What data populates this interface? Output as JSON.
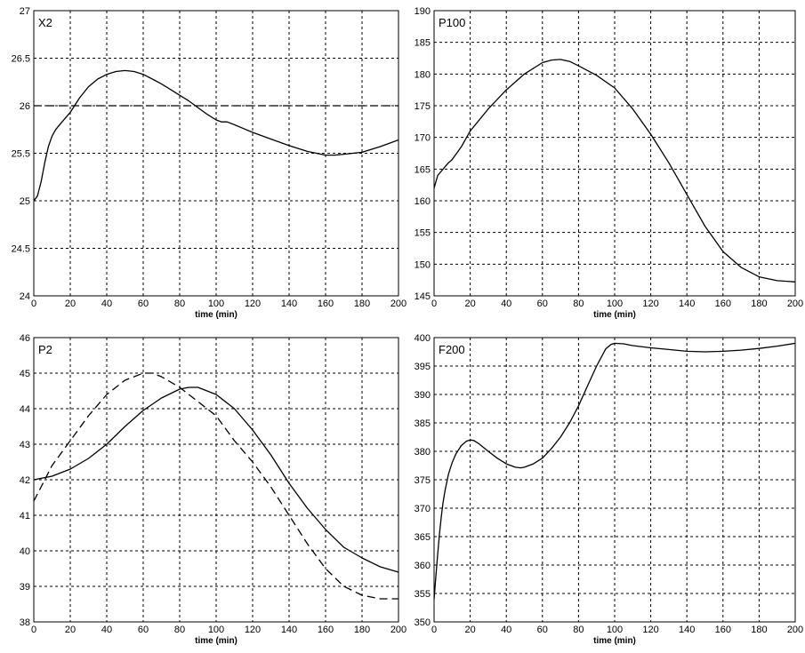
{
  "chart_data": [
    {
      "type": "line",
      "title": "X2",
      "xlabel": "time (min)",
      "ylabel": "",
      "xlim": [
        0,
        200
      ],
      "ylim": [
        24,
        27
      ],
      "grid": true,
      "xticks": [
        0,
        20,
        40,
        60,
        80,
        100,
        120,
        140,
        160,
        180,
        200
      ],
      "yticks": [
        24,
        24.5,
        25,
        25.5,
        26,
        26.5,
        27
      ],
      "series": [
        {
          "style": "solid",
          "x": [
            0,
            2,
            4,
            6,
            8,
            10,
            12,
            15,
            20,
            25,
            30,
            35,
            40,
            45,
            50,
            55,
            60,
            65,
            70,
            75,
            80,
            85,
            90,
            95,
            100,
            103,
            106,
            110,
            115,
            120,
            130,
            140,
            150,
            160,
            165,
            170,
            180,
            190,
            200
          ],
          "y": [
            25.0,
            25.05,
            25.2,
            25.4,
            25.57,
            25.68,
            25.75,
            25.82,
            25.93,
            26.08,
            26.2,
            26.28,
            26.33,
            26.36,
            26.37,
            26.36,
            26.33,
            26.28,
            26.23,
            26.17,
            26.11,
            26.05,
            25.98,
            25.91,
            25.85,
            25.83,
            25.83,
            25.8,
            25.76,
            25.72,
            25.65,
            25.58,
            25.52,
            25.48,
            25.48,
            25.49,
            25.51,
            25.57,
            25.64
          ]
        },
        {
          "style": "dashed",
          "x": [
            0,
            200
          ],
          "y": [
            26.0,
            26.0
          ]
        }
      ]
    },
    {
      "type": "line",
      "title": "P100",
      "xlabel": "time (min)",
      "ylabel": "",
      "xlim": [
        0,
        200
      ],
      "ylim": [
        145,
        190
      ],
      "grid": true,
      "xticks": [
        0,
        20,
        40,
        60,
        80,
        100,
        120,
        140,
        160,
        180,
        200
      ],
      "yticks": [
        145,
        150,
        155,
        160,
        165,
        170,
        175,
        180,
        185,
        190
      ],
      "series": [
        {
          "style": "solid",
          "x": [
            0,
            2,
            5,
            8,
            10,
            15,
            20,
            30,
            40,
            50,
            60,
            65,
            70,
            75,
            80,
            90,
            100,
            110,
            120,
            130,
            140,
            150,
            160,
            170,
            180,
            190,
            200
          ],
          "y": [
            162,
            164,
            165,
            166,
            166.5,
            168.5,
            171,
            174.5,
            177.5,
            180,
            181.8,
            182.2,
            182.3,
            182,
            181.3,
            179.8,
            177.8,
            174.5,
            170.5,
            166,
            161,
            156,
            152,
            149.5,
            148,
            147.4,
            147.2
          ]
        }
      ]
    },
    {
      "type": "line",
      "title": "P2",
      "xlabel": "time (min)",
      "ylabel": "",
      "xlim": [
        0,
        200
      ],
      "ylim": [
        38,
        46
      ],
      "grid": true,
      "xticks": [
        0,
        20,
        40,
        60,
        80,
        100,
        120,
        140,
        160,
        180,
        200
      ],
      "yticks": [
        38,
        39,
        40,
        41,
        42,
        43,
        44,
        45,
        46
      ],
      "series": [
        {
          "style": "solid",
          "x": [
            0,
            10,
            20,
            30,
            40,
            50,
            60,
            70,
            80,
            85,
            90,
            100,
            110,
            120,
            130,
            140,
            150,
            160,
            170,
            180,
            190,
            200
          ],
          "y": [
            42.0,
            42.1,
            42.3,
            42.6,
            43.0,
            43.5,
            43.95,
            44.3,
            44.55,
            44.6,
            44.6,
            44.4,
            44.0,
            43.4,
            42.7,
            41.9,
            41.2,
            40.6,
            40.1,
            39.8,
            39.55,
            39.4
          ]
        },
        {
          "style": "dashed",
          "x": [
            0,
            5,
            10,
            20,
            30,
            40,
            50,
            60,
            65,
            70,
            80,
            90,
            100,
            110,
            120,
            130,
            140,
            150,
            160,
            170,
            180,
            190,
            200
          ],
          "y": [
            41.4,
            41.9,
            42.4,
            43.1,
            43.8,
            44.4,
            44.8,
            45.0,
            45.0,
            44.9,
            44.6,
            44.2,
            43.8,
            43.1,
            42.5,
            41.8,
            41.0,
            40.2,
            39.5,
            39.0,
            38.75,
            38.65,
            38.65
          ]
        }
      ]
    },
    {
      "type": "line",
      "title": "F200",
      "xlabel": "time (min)",
      "ylabel": "",
      "xlim": [
        0,
        200
      ],
      "ylim": [
        350,
        400
      ],
      "grid": true,
      "xticks": [
        0,
        20,
        40,
        60,
        80,
        100,
        120,
        140,
        160,
        180,
        200
      ],
      "yticks": [
        350,
        355,
        360,
        365,
        370,
        375,
        380,
        385,
        390,
        395,
        400
      ],
      "series": [
        {
          "style": "solid",
          "x": [
            0,
            1,
            2,
            3,
            4,
            5,
            6,
            8,
            10,
            12,
            15,
            18,
            20,
            22,
            25,
            30,
            35,
            40,
            45,
            48,
            50,
            55,
            60,
            65,
            70,
            75,
            80,
            85,
            90,
            95,
            98,
            100,
            105,
            110,
            120,
            130,
            140,
            150,
            160,
            170,
            180,
            190,
            200
          ],
          "y": [
            354,
            358,
            362,
            365.5,
            368.5,
            371,
            373,
            376,
            378,
            379.5,
            381,
            381.8,
            382,
            381.9,
            381.3,
            380,
            378.8,
            377.8,
            377.2,
            377.1,
            377.2,
            377.8,
            378.8,
            380.5,
            382.5,
            385,
            388,
            391.5,
            395,
            398,
            398.8,
            399,
            398.9,
            398.6,
            398.2,
            397.9,
            397.6,
            397.5,
            397.6,
            397.8,
            398.1,
            398.5,
            399
          ]
        }
      ]
    }
  ]
}
